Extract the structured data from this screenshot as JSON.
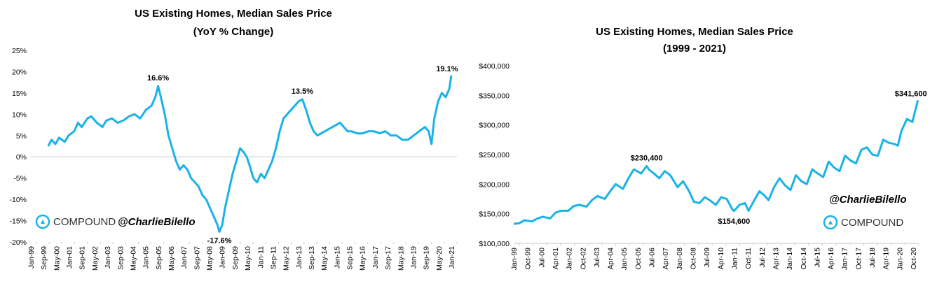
{
  "chart_data": [
    {
      "type": "line",
      "title": "US Existing Homes, Median Sales Price",
      "subtitle": "(YoY % Change)",
      "ylim": [
        -20,
        25
      ],
      "yticks": [
        "-20%",
        "-15%",
        "-10%",
        "-5%",
        "0%",
        "5%",
        "10%",
        "15%",
        "20%",
        "25%"
      ],
      "xticks": [
        "Jan-99",
        "Sep-99",
        "May-00",
        "Jan-01",
        "Sep-01",
        "May-02",
        "Jan-03",
        "Sep-03",
        "May-04",
        "Jan-05",
        "Sep-05",
        "May-06",
        "Jan-07",
        "Sep-07",
        "May-08",
        "Jan-09",
        "Sep-09",
        "May-10",
        "Jan-11",
        "Sep-11",
        "May-12",
        "Jan-13",
        "Sep-13",
        "May-14",
        "Jan-15",
        "Sep-15",
        "May-16",
        "Jan-17",
        "Sep-17",
        "May-18",
        "Jan-19",
        "Sep-19",
        "May-20",
        "Jan-21"
      ],
      "line_color": "#1ab2e8",
      "grid": false,
      "series": [
        {
          "x": [
            1999.92,
            2000.1,
            2000.3,
            2000.5,
            2000.8,
            2001.0,
            2001.3,
            2001.5,
            2001.7,
            2002.0,
            2002.2,
            2002.5,
            2002.8,
            2003.0,
            2003.3,
            2003.6,
            2003.9,
            2004.2,
            2004.5,
            2004.8,
            2005.1,
            2005.4,
            2005.6,
            2005.75,
            2005.9,
            2006.1,
            2006.3,
            2006.5,
            2006.7,
            2006.9,
            2007.1,
            2007.3,
            2007.5,
            2007.7,
            2007.9,
            2008.1,
            2008.3,
            2008.5,
            2008.7,
            2008.9,
            2009.0,
            2009.15,
            2009.3,
            2009.5,
            2009.7,
            2009.9,
            2010.1,
            2010.3,
            2010.45,
            2010.6,
            2010.8,
            2011.0,
            2011.2,
            2011.4,
            2011.6,
            2011.8,
            2012.0,
            2012.2,
            2012.4,
            2012.6,
            2012.8,
            2013.0,
            2013.2,
            2013.4,
            2013.6,
            2013.8,
            2014.0,
            2014.2,
            2014.4,
            2014.6,
            2014.8,
            2015.0,
            2015.2,
            2015.4,
            2015.6,
            2015.8,
            2016.0,
            2016.3,
            2016.6,
            2016.9,
            2017.2,
            2017.5,
            2017.8,
            2018.1,
            2018.4,
            2018.7,
            2019.0,
            2019.3,
            2019.6,
            2019.9,
            2020.1,
            2020.25,
            2020.4,
            2020.6,
            2020.8,
            2021.0,
            2021.2,
            2021.3
          ],
          "y": [
            2.5,
            4,
            3,
            4.5,
            3.5,
            5,
            6,
            8,
            7,
            9,
            9.5,
            8,
            7,
            8.5,
            9,
            8,
            8.5,
            9.5,
            10,
            9,
            11,
            12,
            14,
            16.6,
            14,
            10,
            5,
            2,
            -1,
            -3,
            -2,
            -3,
            -5,
            -6,
            -7,
            -9,
            -10,
            -12,
            -14,
            -16,
            -17.6,
            -16,
            -12,
            -8,
            -4,
            -1,
            2,
            1,
            0,
            -2,
            -5,
            -6,
            -4,
            -5,
            -3,
            -1,
            2,
            6,
            9,
            10,
            11,
            12,
            13,
            13.5,
            11,
            8,
            6,
            5,
            5.5,
            6,
            6.5,
            7,
            7.5,
            8,
            7,
            6,
            6,
            5.5,
            5.5,
            6,
            6,
            5.5,
            6,
            5,
            5,
            4,
            4,
            5,
            6,
            7,
            6,
            3,
            9,
            13,
            15,
            14,
            16,
            19.1
          ]
        }
      ],
      "annotations": [
        {
          "label": "16.6%",
          "x": 2005.75,
          "y": 16.6
        },
        {
          "label": "-17.6%",
          "x": 2009.0,
          "y": -17.6
        },
        {
          "label": "13.5%",
          "x": 2013.4,
          "y": 13.5
        },
        {
          "label": "19.1%",
          "x": 2021.3,
          "y": 19.1
        }
      ],
      "brand": "COMPOUND",
      "handle": "@CharlieBilello"
    },
    {
      "type": "line",
      "title": "US Existing Homes, Median Sales Price",
      "subtitle": "(1999 - 2021)",
      "ylim": [
        100000,
        400000
      ],
      "yticks": [
        "$100,000",
        "$150,000",
        "$200,000",
        "$250,000",
        "$300,000",
        "$350,000",
        "$400,000"
      ],
      "xticks": [
        "Jan-99",
        "Oct-99",
        "Jul-00",
        "Apr-01",
        "Jan-02",
        "Oct-02",
        "Jul-03",
        "Apr-04",
        "Jan-05",
        "Oct-05",
        "Jul-06",
        "Apr-07",
        "Jan-08",
        "Oct-08",
        "Jul-09",
        "Apr-10",
        "Jan-11",
        "Oct-11",
        "Jul-12",
        "Apr-13",
        "Jan-14",
        "Oct-14",
        "Jul-15",
        "Apr-16",
        "Jan-17",
        "Oct-17",
        "Jul-18",
        "Apr-19",
        "Jan-20",
        "Oct-20"
      ],
      "line_color": "#1ab2e8",
      "grid": false,
      "series": [
        {
          "x": [
            1999.0,
            1999.3,
            1999.6,
            2000.0,
            2000.3,
            2000.6,
            2001.0,
            2001.3,
            2001.6,
            2002.0,
            2002.3,
            2002.6,
            2003.0,
            2003.3,
            2003.6,
            2004.0,
            2004.3,
            2004.6,
            2005.0,
            2005.3,
            2005.6,
            2006.0,
            2006.3,
            2006.45,
            2006.7,
            2007.0,
            2007.3,
            2007.6,
            2008.0,
            2008.3,
            2008.6,
            2008.9,
            2009.2,
            2009.5,
            2009.8,
            2010.1,
            2010.4,
            2010.7,
            2011.0,
            2011.1,
            2011.4,
            2011.7,
            2011.9,
            2012.2,
            2012.5,
            2012.8,
            2013.0,
            2013.3,
            2013.6,
            2013.9,
            2014.2,
            2014.5,
            2014.8,
            2015.1,
            2015.4,
            2015.7,
            2016.0,
            2016.3,
            2016.6,
            2016.9,
            2017.2,
            2017.5,
            2017.8,
            2018.1,
            2018.4,
            2018.7,
            2019.0,
            2019.3,
            2019.6,
            2019.9,
            2020.1,
            2020.3,
            2020.6,
            2020.9,
            2021.2
          ],
          "y": [
            133000,
            134000,
            139000,
            137000,
            142000,
            145000,
            142000,
            152000,
            155000,
            155000,
            163000,
            165000,
            162000,
            173000,
            180000,
            175000,
            188000,
            200000,
            192000,
            210000,
            225000,
            218000,
            230400,
            224000,
            218000,
            210000,
            222000,
            215000,
            195000,
            205000,
            190000,
            170000,
            168000,
            178000,
            172000,
            165000,
            178000,
            175000,
            158000,
            154600,
            165000,
            168000,
            155000,
            172000,
            188000,
            180000,
            173000,
            195000,
            210000,
            198000,
            190000,
            215000,
            205000,
            200000,
            225000,
            218000,
            212000,
            238000,
            228000,
            222000,
            248000,
            240000,
            235000,
            258000,
            262000,
            250000,
            248000,
            275000,
            270000,
            268000,
            265000,
            290000,
            310000,
            305000,
            341600
          ]
        }
      ],
      "annotations": [
        {
          "label": "$230,400",
          "x": 2006.3,
          "y": 230400
        },
        {
          "label": "$154,600",
          "x": 2011.1,
          "y": 154600
        },
        {
          "label": "$341,600",
          "x": 2021.2,
          "y": 341600
        }
      ],
      "brand": "COMPOUND",
      "handle": "@CharlieBilello"
    }
  ]
}
